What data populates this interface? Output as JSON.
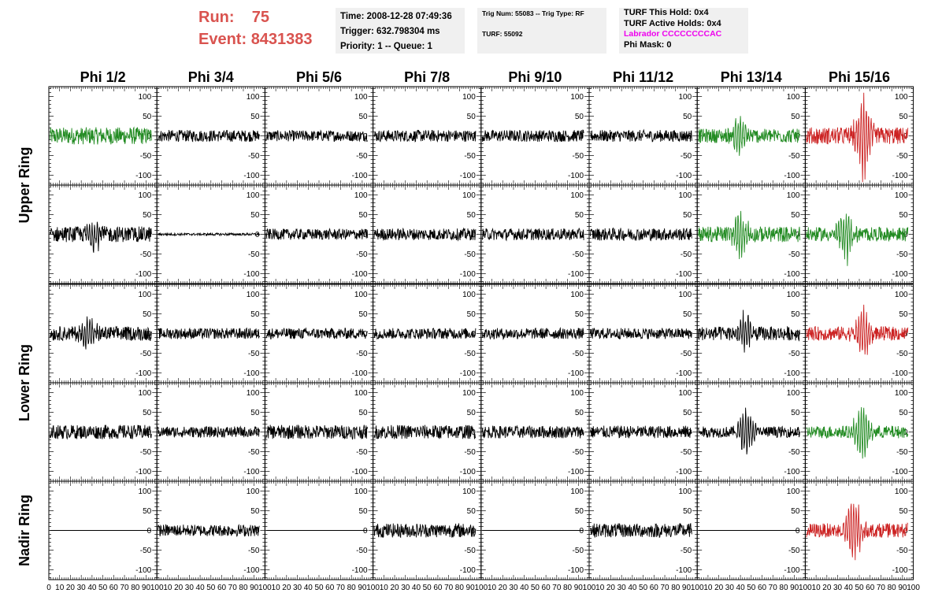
{
  "header": {
    "run_label": "Run:",
    "run_value": "75",
    "event_label": "Event:",
    "event_value": "8431383",
    "run_color": "#d9534f"
  },
  "info1": {
    "time": "Time: 2008-12-28 07:49:36",
    "trigger": "Trigger: 632.798304 ms",
    "priority": "Priority: 1 -- Queue: 1"
  },
  "info2": {
    "trig": "Trig Num: 55083 -- Trig Type: RF",
    "turf": "TURF: 55092"
  },
  "info3": {
    "hold": "TURF This Hold: 0x4",
    "active": "TURF Active Holds: 0x4",
    "labrador": "Labrador CCCCCCCCAC",
    "phimask": "Phi Mask: 0",
    "labrador_color": "#ee00ee"
  },
  "chart_data": {
    "type": "line",
    "columns": [
      "Phi 1/2",
      "Phi 3/4",
      "Phi 5/6",
      "Phi 7/8",
      "Phi 9/10",
      "Phi 11/12",
      "Phi 13/14",
      "Phi 15/16"
    ],
    "rows": [
      "Upper Ring",
      "Lower Ring",
      "Nadir Ring"
    ],
    "xlim": [
      0,
      100
    ],
    "ylim": [
      -125,
      125
    ],
    "yticks": [
      -100,
      -50,
      0,
      50,
      100
    ],
    "xtick_labels": [
      "0",
      "10",
      "20",
      "30",
      "40",
      "50",
      "60",
      "70",
      "80",
      "90",
      "100"
    ],
    "colors": {
      "black": "#000000",
      "green": "#228B22",
      "red": "#cc2222"
    },
    "panels": [
      [
        {
          "color": "green",
          "amp": 22,
          "burst": 0
        },
        {
          "color": "black",
          "amp": 15,
          "burst": 0
        },
        {
          "color": "black",
          "amp": 14,
          "burst": 0
        },
        {
          "color": "black",
          "amp": 15,
          "burst": 0
        },
        {
          "color": "black",
          "amp": 15,
          "burst": 0
        },
        {
          "color": "black",
          "amp": 15,
          "burst": 0
        },
        {
          "color": "green",
          "amp": 18,
          "burst": 55
        },
        {
          "color": "red",
          "amp": 22,
          "burst": 110
        }
      ],
      [
        {
          "color": "black",
          "amp": 20,
          "burst": 40
        },
        {
          "color": "black",
          "amp": 3,
          "burst": 0
        },
        {
          "color": "black",
          "amp": 14,
          "burst": 0
        },
        {
          "color": "black",
          "amp": 15,
          "burst": 0
        },
        {
          "color": "black",
          "amp": 15,
          "burst": 0
        },
        {
          "color": "black",
          "amp": 16,
          "burst": 0
        },
        {
          "color": "green",
          "amp": 20,
          "burst": 60
        },
        {
          "color": "green",
          "amp": 18,
          "burst": 70
        }
      ],
      [
        {
          "color": "black",
          "amp": 18,
          "burst": 55
        },
        {
          "color": "black",
          "amp": 14,
          "burst": 0
        },
        {
          "color": "black",
          "amp": 14,
          "burst": 0
        },
        {
          "color": "black",
          "amp": 14,
          "burst": 0
        },
        {
          "color": "black",
          "amp": 14,
          "burst": 0
        },
        {
          "color": "black",
          "amp": 14,
          "burst": 0
        },
        {
          "color": "black",
          "amp": 18,
          "burst": 55
        },
        {
          "color": "red",
          "amp": 18,
          "burst": 70
        }
      ],
      [
        {
          "color": "black",
          "amp": 18,
          "burst": 0
        },
        {
          "color": "black",
          "amp": 14,
          "burst": 0
        },
        {
          "color": "black",
          "amp": 18,
          "burst": 0
        },
        {
          "color": "black",
          "amp": 18,
          "burst": 0
        },
        {
          "color": "black",
          "amp": 16,
          "burst": 0
        },
        {
          "color": "black",
          "amp": 16,
          "burst": 0
        },
        {
          "color": "black",
          "amp": 14,
          "burst": 70
        },
        {
          "color": "green",
          "amp": 16,
          "burst": 80
        }
      ],
      [
        {
          "color": "black",
          "amp": 0,
          "burst": 0
        },
        {
          "color": "black",
          "amp": 15,
          "burst": 0
        },
        {
          "color": "black",
          "amp": 0,
          "burst": 0
        },
        {
          "color": "black",
          "amp": 18,
          "burst": 0
        },
        {
          "color": "black",
          "amp": 0,
          "burst": 0
        },
        {
          "color": "black",
          "amp": 18,
          "burst": 0
        },
        {
          "color": "black",
          "amp": 0,
          "burst": 0
        },
        {
          "color": "red",
          "amp": 18,
          "burst": 90
        }
      ]
    ]
  }
}
